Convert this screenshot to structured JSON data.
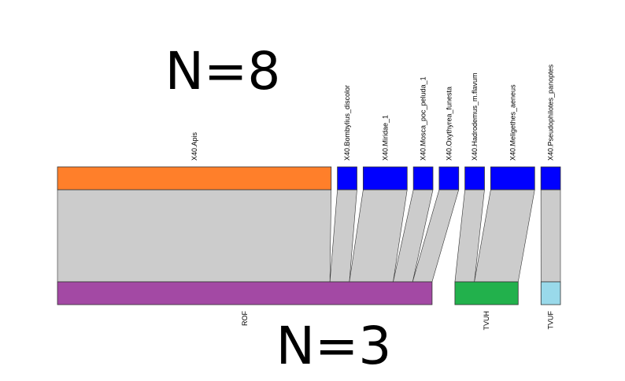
{
  "chart_data": {
    "type": "bipartite",
    "title_top": "N=8",
    "title_bottom": "N=3",
    "colors": {
      "link": "#cccccc",
      "border": "#333333"
    },
    "top_nodes": [
      {
        "name": "X40.Apis",
        "weight": 56,
        "color": "#ff7f2a"
      },
      {
        "name": "X40.Bombylius_discolor",
        "weight": 4,
        "color": "#0000ff"
      },
      {
        "name": "X40.Miridae_1",
        "weight": 9,
        "color": "#0000ff"
      },
      {
        "name": "X40.Mosca_poc_peluda_1",
        "weight": 4,
        "color": "#0000ff"
      },
      {
        "name": "X40.Oxythyrea_funesta",
        "weight": 4,
        "color": "#0000ff"
      },
      {
        "name": "X40.Hadrodemus_m.flavum",
        "weight": 4,
        "color": "#0000ff"
      },
      {
        "name": "X40.Meligethes_aeneus",
        "weight": 9,
        "color": "#0000ff"
      },
      {
        "name": "X40.Pseudophilotes_panoptes",
        "weight": 4,
        "color": "#0000ff"
      }
    ],
    "bottom_nodes": [
      {
        "name": "ROF",
        "weight": 77,
        "color": "#a349a4"
      },
      {
        "name": "TVUH",
        "weight": 13,
        "color": "#22b14c"
      },
      {
        "name": "TVUF",
        "weight": 4,
        "color": "#99d9ea"
      }
    ],
    "links": [
      {
        "from": "X40.Apis",
        "to": "ROF",
        "weight": 56
      },
      {
        "from": "X40.Bombylius_discolor",
        "to": "ROF",
        "weight": 4
      },
      {
        "from": "X40.Miridae_1",
        "to": "ROF",
        "weight": 9
      },
      {
        "from": "X40.Mosca_poc_peluda_1",
        "to": "ROF",
        "weight": 4
      },
      {
        "from": "X40.Oxythyrea_funesta",
        "to": "ROF",
        "weight": 4
      },
      {
        "from": "X40.Hadrodemus_m.flavum",
        "to": "TVUH",
        "weight": 4
      },
      {
        "from": "X40.Meligethes_aeneus",
        "to": "TVUH",
        "weight": 9
      },
      {
        "from": "X40.Pseudophilotes_panoptes",
        "to": "TVUF",
        "weight": 4
      }
    ]
  }
}
